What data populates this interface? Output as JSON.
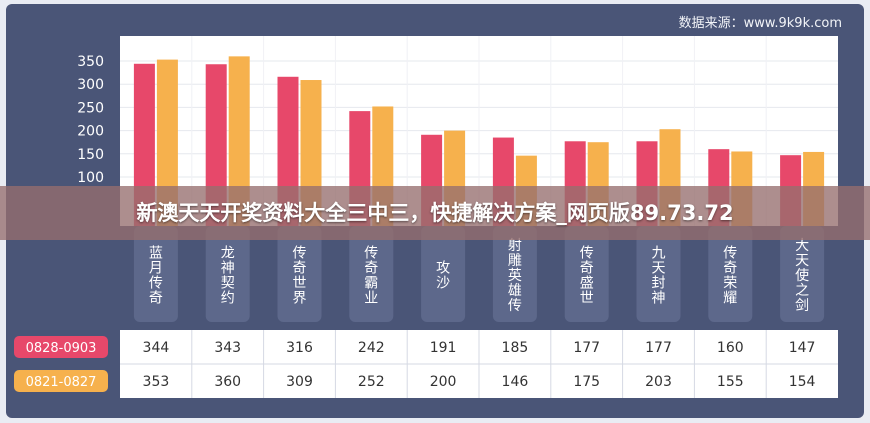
{
  "source": "数据来源：www.9k9k.com",
  "banner": "新澳天天开奖资料大全三中三，快捷解决方案_网页版89.73.72",
  "colors": {
    "series1": "#e7486a",
    "series2": "#f6b14d",
    "frame": "#4a5577"
  },
  "chart_data": {
    "type": "bar",
    "categories": [
      "蓝月传奇",
      "龙神契约",
      "传奇世界",
      "传奇霸业",
      "攻沙",
      "射雕英雄传",
      "传奇盛世",
      "九天封神",
      "传奇荣耀",
      "大天使之剑"
    ],
    "series": [
      {
        "name": "0828-0903",
        "values": [
          344,
          343,
          316,
          242,
          191,
          185,
          177,
          177,
          160,
          147
        ]
      },
      {
        "name": "0821-0827",
        "values": [
          353,
          360,
          309,
          252,
          200,
          146,
          175,
          203,
          155,
          154
        ]
      }
    ],
    "yticks": [
      100,
      150,
      200,
      250,
      300,
      350
    ],
    "ylim": [
      0,
      380
    ],
    "grid": true,
    "legend": "left, as row labels of the data table"
  }
}
